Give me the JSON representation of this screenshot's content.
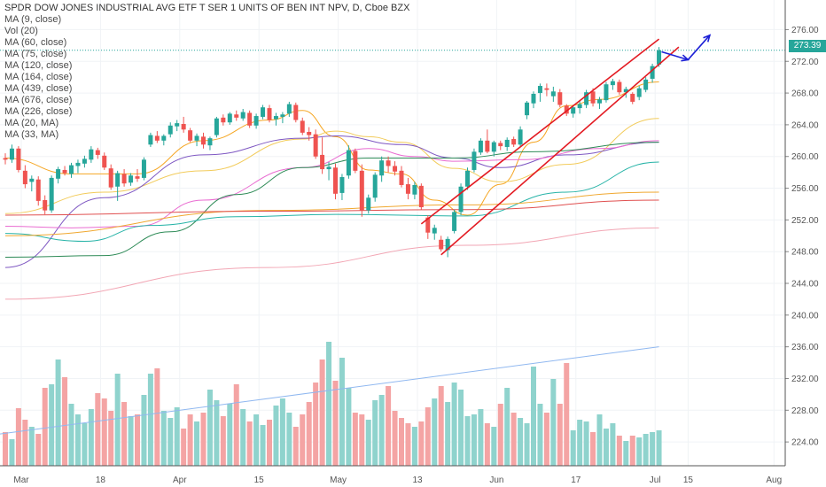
{
  "legend": {
    "title": "SPDR DOW JONES INDUSTRIAL AVG ETF T SER 1 UNITS OF BEN INT NPV, D, Cboe BZX",
    "items": [
      "MA (9, close)",
      "Vol (20)",
      "MA (60, close)",
      "MA (75, close)",
      "MA (120, close)",
      "MA (164, close)",
      "MA (439, close)",
      "MA (676, close)",
      "MA (226, close)",
      "MA (20, MA)",
      "MA (33, MA)"
    ]
  },
  "price_badge": "273.39",
  "colors": {
    "up": "#26a69a",
    "down": "#ef5350",
    "vol_up": "#8fd3cd",
    "vol_down": "#f4a4a4",
    "trend": "#e31b23",
    "arrow": "#1c1fd6",
    "vol_ma": "#90b8f0"
  },
  "chart_data": {
    "type": "candlestick",
    "x_ticks": [
      "Mar",
      "18",
      "Apr",
      "15",
      "May",
      "13",
      "Jun",
      "17",
      "Jul",
      "15",
      "Aug"
    ],
    "y_ticks": [
      "276.00",
      "272.00",
      "268.00",
      "264.00",
      "260.00",
      "256.00",
      "252.00",
      "248.00",
      "244.00",
      "240.00",
      "236.00",
      "232.00",
      "228.00",
      "224.00"
    ],
    "ylim": [
      221,
      277.5
    ],
    "last_price": 273.39,
    "candles": [
      [
        259.8,
        260.4,
        259.0,
        259.6
      ],
      [
        259.6,
        261.5,
        259.2,
        261.0
      ],
      [
        261.0,
        261.3,
        258.0,
        258.3
      ],
      [
        258.2,
        258.9,
        256.0,
        256.5
      ],
      [
        256.8,
        257.6,
        255.6,
        257.2
      ],
      [
        257.1,
        257.5,
        253.8,
        254.4
      ],
      [
        254.5,
        255.1,
        252.7,
        253.2
      ],
      [
        253.2,
        257.6,
        252.9,
        257.3
      ],
      [
        257.2,
        258.7,
        256.6,
        258.4
      ],
      [
        258.3,
        258.8,
        257.6,
        257.9
      ],
      [
        257.8,
        259.2,
        257.3,
        258.9
      ],
      [
        258.8,
        259.6,
        257.9,
        259.2
      ],
      [
        259.1,
        260.1,
        258.6,
        259.7
      ],
      [
        259.6,
        261.3,
        259.2,
        260.9
      ],
      [
        260.8,
        261.1,
        259.7,
        260.2
      ],
      [
        260.1,
        260.5,
        258.3,
        258.6
      ],
      [
        258.5,
        259.0,
        255.8,
        256.1
      ],
      [
        256.2,
        258.2,
        254.4,
        257.9
      ],
      [
        257.8,
        258.4,
        256.2,
        256.6
      ],
      [
        256.7,
        257.9,
        256.3,
        257.6
      ],
      [
        257.5,
        258.4,
        256.8,
        257.2
      ],
      [
        257.3,
        259.9,
        257.0,
        259.6
      ],
      [
        261.5,
        263.0,
        261.2,
        262.7
      ],
      [
        262.6,
        263.2,
        261.7,
        262.0
      ],
      [
        262.0,
        262.8,
        261.4,
        262.6
      ],
      [
        262.8,
        264.3,
        262.4,
        263.9
      ],
      [
        263.8,
        264.6,
        263.2,
        264.2
      ],
      [
        264.1,
        265.0,
        263.0,
        263.4
      ],
      [
        263.3,
        263.6,
        261.8,
        262.0
      ],
      [
        262.0,
        262.9,
        261.3,
        262.6
      ],
      [
        262.5,
        263.0,
        261.0,
        261.5
      ],
      [
        261.4,
        262.5,
        260.8,
        262.3
      ],
      [
        262.7,
        265.0,
        262.4,
        264.8
      ],
      [
        264.9,
        265.3,
        263.9,
        264.3
      ],
      [
        264.3,
        265.6,
        264.0,
        265.4
      ],
      [
        265.3,
        265.8,
        264.5,
        264.9
      ],
      [
        264.8,
        266.0,
        264.5,
        265.6
      ],
      [
        265.5,
        265.8,
        263.6,
        263.9
      ],
      [
        263.9,
        265.4,
        263.5,
        265.1
      ],
      [
        265.0,
        266.5,
        264.7,
        266.2
      ],
      [
        266.1,
        266.5,
        264.3,
        264.6
      ],
      [
        264.7,
        265.5,
        263.9,
        265.1
      ],
      [
        265.0,
        265.6,
        264.2,
        265.3
      ],
      [
        265.4,
        266.9,
        265.0,
        266.6
      ],
      [
        266.5,
        266.8,
        264.3,
        264.6
      ],
      [
        264.5,
        264.9,
        262.7,
        263.0
      ],
      [
        263.1,
        263.7,
        262.0,
        262.7
      ],
      [
        262.8,
        263.4,
        259.7,
        260.0
      ],
      [
        260.2,
        262.4,
        257.8,
        258.4
      ],
      [
        258.4,
        259.3,
        257.0,
        258.7
      ],
      [
        258.6,
        259.1,
        254.6,
        255.3
      ],
      [
        255.4,
        257.8,
        254.5,
        257.4
      ],
      [
        257.6,
        261.4,
        257.2,
        260.8
      ],
      [
        260.7,
        261.0,
        257.9,
        258.2
      ],
      [
        258.2,
        259.0,
        252.4,
        253.2
      ],
      [
        253.2,
        255.2,
        252.8,
        254.8
      ],
      [
        254.8,
        258.0,
        254.3,
        257.7
      ],
      [
        257.6,
        260.0,
        256.8,
        259.5
      ],
      [
        259.5,
        260.0,
        258.0,
        258.8
      ],
      [
        258.8,
        259.4,
        257.6,
        258.1
      ],
      [
        258.2,
        258.8,
        256.1,
        256.4
      ],
      [
        256.5,
        257.3,
        254.6,
        255.3
      ],
      [
        255.2,
        256.8,
        254.6,
        256.4
      ],
      [
        256.3,
        256.6,
        253.3,
        253.6
      ],
      [
        252.3,
        252.6,
        249.6,
        250.4
      ],
      [
        250.3,
        251.4,
        249.5,
        251.0
      ],
      [
        249.5,
        250.0,
        248.0,
        248.3
      ],
      [
        248.2,
        249.9,
        247.3,
        249.6
      ],
      [
        250.6,
        253.3,
        250.3,
        253.0
      ],
      [
        253.0,
        256.6,
        252.6,
        256.2
      ],
      [
        256.2,
        258.6,
        255.8,
        258.2
      ],
      [
        258.3,
        261.0,
        258.0,
        260.6
      ],
      [
        260.5,
        262.3,
        260.2,
        262.0
      ],
      [
        262.0,
        263.4,
        260.4,
        260.6
      ],
      [
        260.6,
        262.0,
        260.0,
        261.8
      ],
      [
        261.7,
        262.0,
        260.8,
        261.3
      ],
      [
        261.2,
        262.4,
        260.7,
        262.1
      ],
      [
        262.2,
        262.5,
        261.2,
        261.5
      ],
      [
        261.5,
        263.8,
        261.2,
        263.4
      ],
      [
        265.2,
        267.0,
        264.7,
        266.8
      ],
      [
        266.7,
        268.2,
        266.1,
        267.9
      ],
      [
        268.0,
        269.2,
        266.9,
        268.9
      ],
      [
        268.6,
        269.2,
        267.6,
        268.4
      ],
      [
        267.6,
        268.8,
        266.9,
        268.2
      ],
      [
        268.1,
        268.5,
        266.2,
        266.5
      ],
      [
        266.4,
        266.6,
        265.1,
        265.4
      ],
      [
        265.4,
        266.5,
        264.9,
        266.2
      ],
      [
        266.1,
        267.0,
        265.4,
        266.6
      ],
      [
        266.5,
        268.4,
        266.1,
        268.1
      ],
      [
        268.2,
        268.6,
        266.3,
        266.7
      ],
      [
        266.7,
        267.5,
        266.0,
        267.2
      ],
      [
        267.1,
        269.4,
        266.8,
        269.1
      ],
      [
        269.0,
        269.8,
        268.4,
        269.5
      ],
      [
        269.4,
        269.7,
        267.8,
        268.1
      ],
      [
        268.1,
        268.8,
        267.4,
        268.5
      ],
      [
        267.9,
        268.1,
        266.6,
        266.9
      ],
      [
        267.5,
        268.9,
        267.1,
        268.6
      ],
      [
        268.4,
        270.0,
        268.1,
        269.7
      ],
      [
        269.8,
        271.7,
        269.3,
        271.4
      ],
      [
        271.6,
        273.8,
        271.3,
        273.4
      ]
    ],
    "volume_axis_max": 236,
    "volume_ma_range": [
      225.0,
      236.0
    ],
    "ma_lines": [
      {
        "color": "#f5a623",
        "from": 2,
        "points": [
          [
            0,
            259.8
          ],
          [
            10,
            257.8
          ],
          [
            20,
            257.8
          ],
          [
            30,
            262.0
          ],
          [
            40,
            264.6
          ],
          [
            45,
            265.8
          ],
          [
            50,
            262.5
          ],
          [
            55,
            258.3
          ],
          [
            60,
            257.8
          ],
          [
            65,
            254.5
          ],
          [
            70,
            252.6
          ],
          [
            75,
            256.5
          ],
          [
            80,
            261.8
          ],
          [
            85,
            266.4
          ],
          [
            90,
            267.2
          ],
          [
            99,
            269.4
          ]
        ]
      },
      {
        "color": "#f2cb5a",
        "from": 0,
        "points": [
          [
            0,
            252.8
          ],
          [
            15,
            255.5
          ],
          [
            30,
            258.2
          ],
          [
            45,
            262.2
          ],
          [
            50,
            263.2
          ],
          [
            55,
            262.5
          ],
          [
            60,
            261.8
          ],
          [
            68,
            258.5
          ],
          [
            75,
            256.8
          ],
          [
            85,
            259.0
          ],
          [
            99,
            264.8
          ]
        ]
      },
      {
        "color": "#7e57c2",
        "from": 0,
        "points": [
          [
            0,
            246.0
          ],
          [
            15,
            254.8
          ],
          [
            30,
            260.2
          ],
          [
            45,
            262.3
          ],
          [
            50,
            262.6
          ],
          [
            60,
            261.5
          ],
          [
            68,
            259.8
          ],
          [
            75,
            258.6
          ],
          [
            85,
            260.2
          ],
          [
            99,
            261.8
          ]
        ]
      },
      {
        "color": "#e96cd1",
        "from": 0,
        "points": [
          [
            0,
            251.2
          ],
          [
            10,
            251.0
          ],
          [
            20,
            251.2
          ],
          [
            30,
            254.5
          ],
          [
            45,
            258.6
          ],
          [
            55,
            261.0
          ],
          [
            62,
            260.0
          ],
          [
            68,
            259.4
          ],
          [
            78,
            259.6
          ],
          [
            90,
            261.0
          ],
          [
            99,
            262.0
          ]
        ]
      },
      {
        "color": "#2e8b57",
        "from": 0,
        "points": [
          [
            0,
            247.3
          ],
          [
            15,
            247.5
          ],
          [
            25,
            250.5
          ],
          [
            35,
            255.2
          ],
          [
            45,
            258.6
          ],
          [
            55,
            259.8
          ],
          [
            68,
            259.8
          ],
          [
            80,
            260.6
          ],
          [
            99,
            261.8
          ]
        ]
      },
      {
        "color": "#26b3a7",
        "from": 0,
        "points": [
          [
            0,
            250.3
          ],
          [
            12,
            249.3
          ],
          [
            22,
            251.3
          ],
          [
            35,
            252.4
          ],
          [
            50,
            252.7
          ],
          [
            70,
            252.5
          ],
          [
            85,
            255.5
          ],
          [
            99,
            259.3
          ]
        ]
      },
      {
        "color": "#f0a830",
        "from": 0,
        "points": [
          [
            0,
            250.0
          ],
          [
            40,
            253.2
          ],
          [
            70,
            253.9
          ],
          [
            99,
            255.5
          ]
        ]
      },
      {
        "color": "#e05050",
        "from": 0,
        "points": [
          [
            0,
            252.6
          ],
          [
            40,
            253.1
          ],
          [
            70,
            253.3
          ],
          [
            99,
            254.5
          ]
        ]
      },
      {
        "color": "#f2a6b4",
        "from": 0,
        "points": [
          [
            0,
            242.0
          ],
          [
            40,
            246.0
          ],
          [
            70,
            248.8
          ],
          [
            99,
            251.0
          ]
        ]
      }
    ],
    "annotations": [
      {
        "type": "trendline",
        "from": [
          63,
          251.5
        ],
        "to": [
          99,
          274.8
        ]
      },
      {
        "type": "trendline",
        "from": [
          66,
          247.6
        ],
        "to": [
          102,
          273.8
        ]
      },
      {
        "type": "arrow",
        "points": [
          [
            99.4,
            273.2
          ],
          [
            103.4,
            272.2
          ],
          [
            106.7,
            275.3
          ]
        ]
      }
    ]
  }
}
